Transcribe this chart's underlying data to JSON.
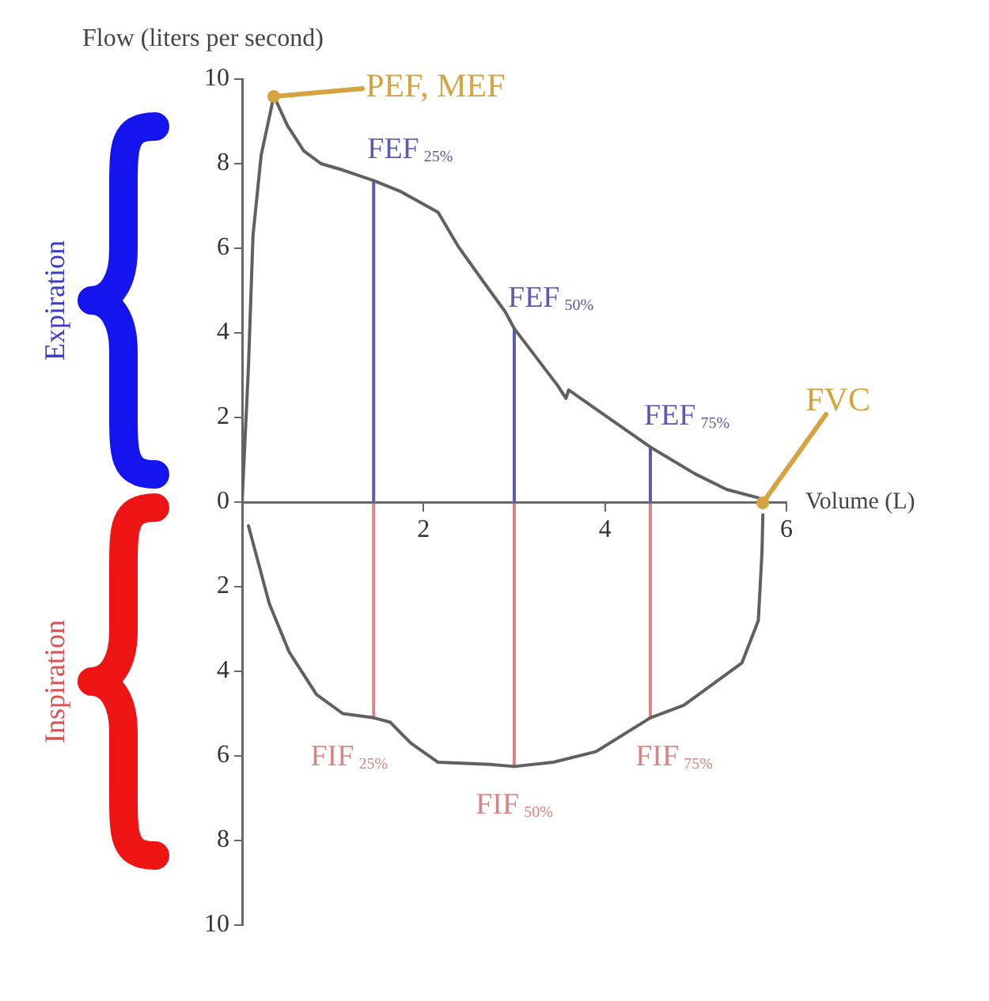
{
  "chart_data": {
    "type": "line",
    "xlabel": "Volume (L)",
    "ylabel": "Flow (liters per second)",
    "xlim": [
      0,
      6
    ],
    "xticks": [
      2,
      4,
      6
    ],
    "ylim": [
      -10,
      10
    ],
    "yticks": [
      {
        "value": -10,
        "label": "10"
      },
      {
        "value": -8,
        "label": "8"
      },
      {
        "value": -6,
        "label": "6"
      },
      {
        "value": -4,
        "label": "4"
      },
      {
        "value": -2,
        "label": "2"
      },
      0,
      2,
      4,
      6,
      8,
      10
    ],
    "grid": false,
    "legend": false,
    "marker": "none",
    "series": [
      {
        "color": "#606060",
        "x": [
          0,
          0.07,
          0.12,
          0.21,
          0.35,
          0.5,
          0.68,
          0.87,
          1.11,
          1.45,
          1.74,
          2.16,
          2.38,
          2.68,
          2.9,
          3.0,
          3.48,
          3.57,
          3.6,
          4.0,
          4.5,
          4.99,
          5.34,
          5.69,
          5.74
        ],
        "values": [
          0,
          3.2,
          6.3,
          8.2,
          9.6,
          8.9,
          8.3,
          8.0,
          7.85,
          7.6,
          7.35,
          6.85,
          6.05,
          5.15,
          4.5,
          4.1,
          2.75,
          2.45,
          2.65,
          2.05,
          1.3,
          0.67,
          0.3,
          0.1,
          0
        ]
      },
      {
        "color": "#606060",
        "x": [
          0.07,
          0.3,
          0.52,
          0.82,
          1.11,
          1.45,
          1.63,
          1.86,
          2.16,
          2.73,
          3.0,
          3.43,
          3.9,
          4.5,
          4.87,
          5.51,
          5.69,
          5.73,
          5.74
        ],
        "values": [
          -0.56,
          -2.4,
          -3.55,
          -4.55,
          -5.0,
          -5.1,
          -5.2,
          -5.7,
          -6.15,
          -6.2,
          -6.25,
          -6.15,
          -5.9,
          -5.1,
          -4.8,
          -3.8,
          -2.8,
          -1.2,
          -0.3
        ]
      },
      {
        "name": "FEF$_{25%}$",
        "color": "#5a5ab0",
        "x": [
          1.45,
          1.45
        ],
        "values": [
          0,
          7.6
        ]
      },
      {
        "name": "FEF$_{50%}$",
        "color": "#5a5ab0",
        "x": [
          3.0,
          3.0
        ],
        "values": [
          0,
          4.1
        ]
      },
      {
        "name": "FEF$_{75%}$",
        "color": "#5a5ab0",
        "x": [
          4.5,
          4.5
        ],
        "values": [
          0,
          1.3
        ]
      },
      {
        "name": "FIF$_{25%}$",
        "color": "#d98585",
        "x": [
          1.45,
          1.45
        ],
        "values": [
          0,
          -5.1
        ]
      },
      {
        "name": "FIF$_{50%}$",
        "color": "#d98585",
        "x": [
          3.0,
          3.0
        ],
        "values": [
          0,
          -6.25
        ]
      },
      {
        "name": "FIF$_{75%}$",
        "color": "#d98585",
        "x": [
          4.5,
          4.5
        ],
        "values": [
          0,
          -5.1
        ]
      }
    ],
    "annotations": [
      {
        "text": "PEF, MEF",
        "x": 0.35,
        "y": 9.6
      },
      {
        "text": "FVC",
        "x": 5.74,
        "y": 0
      },
      "Expiration",
      "Inspiration"
    ]
  }
}
